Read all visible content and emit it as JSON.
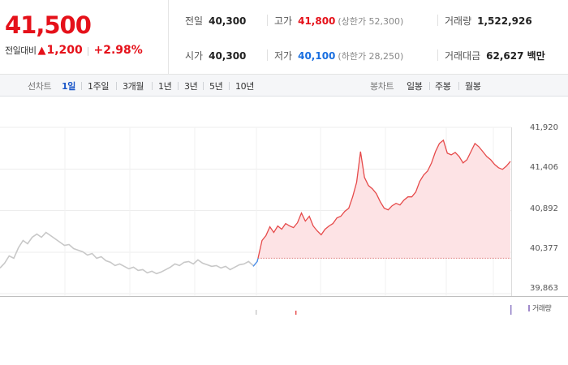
{
  "quote": {
    "price": "41,500",
    "change_label": "전일대비",
    "change_symbol": "▲",
    "change_value": "1,200",
    "change_rate": "+2.98%",
    "prev_close": {
      "label": "전일",
      "value": "40,300"
    },
    "open": {
      "label": "시가",
      "value": "40,300"
    },
    "high": {
      "label": "고가",
      "value": "41,800",
      "limit": "(상한가 52,300)"
    },
    "low": {
      "label": "저가",
      "value": "40,100",
      "limit": "(하한가 28,250)"
    },
    "volume": {
      "label": "거래량",
      "value": "1,522,926"
    },
    "trade_value": {
      "label": "거래대금",
      "value": "62,627 백만"
    },
    "colors": {
      "up": "#e5111a",
      "down": "#1a6fe0"
    }
  },
  "toolbar": {
    "line_label": "선차트",
    "periods": [
      "1일",
      "1주일",
      "3개월",
      "1년",
      "3년",
      "5년",
      "10년"
    ],
    "active_period": "1일",
    "candle_label": "봉차트",
    "candles": [
      "일봉",
      "주봉",
      "월봉"
    ]
  },
  "chart_data": {
    "type": "line",
    "ylim": [
      39863,
      41920
    ],
    "yticks": [
      "41,920",
      "41,406",
      "40,892",
      "40,377",
      "39,863"
    ],
    "reference_price": 40300,
    "colors": {
      "previous_day": "#c8c8c8",
      "today": "#e64a4a",
      "today_fill": "#fde3e5",
      "open_segment": "#4c8ee8"
    },
    "previous_day_prices": [
      40180,
      40240,
      40330,
      40300,
      40430,
      40520,
      40480,
      40560,
      40600,
      40560,
      40620,
      40580,
      40540,
      40500,
      40460,
      40470,
      40420,
      40400,
      40380,
      40340,
      40360,
      40300,
      40320,
      40270,
      40250,
      40210,
      40230,
      40200,
      40170,
      40190,
      40150,
      40160,
      40120,
      40140,
      40110,
      40130,
      40160,
      40190,
      40230,
      40210,
      40250,
      40260,
      40230,
      40280,
      40240,
      40220,
      40200,
      40210,
      40180,
      40200,
      40160,
      40190,
      40220,
      40230,
      40260,
      40210
    ],
    "today_prices": [
      40300,
      40520,
      40580,
      40690,
      40620,
      40700,
      40660,
      40730,
      40700,
      40680,
      40740,
      40860,
      40760,
      40820,
      40700,
      40640,
      40590,
      40660,
      40700,
      40730,
      40800,
      40820,
      40880,
      40920,
      41060,
      41240,
      41620,
      41300,
      41200,
      41160,
      41100,
      41000,
      40920,
      40900,
      40950,
      40980,
      40960,
      41020,
      41060,
      41060,
      41120,
      41250,
      41330,
      41380,
      41480,
      41620,
      41720,
      41760,
      41600,
      41580,
      41610,
      41560,
      41480,
      41520,
      41620,
      41720,
      41680,
      41620,
      41560,
      41520,
      41460,
      41420,
      41400,
      41440,
      41500
    ]
  },
  "volume_legend": "거래량"
}
